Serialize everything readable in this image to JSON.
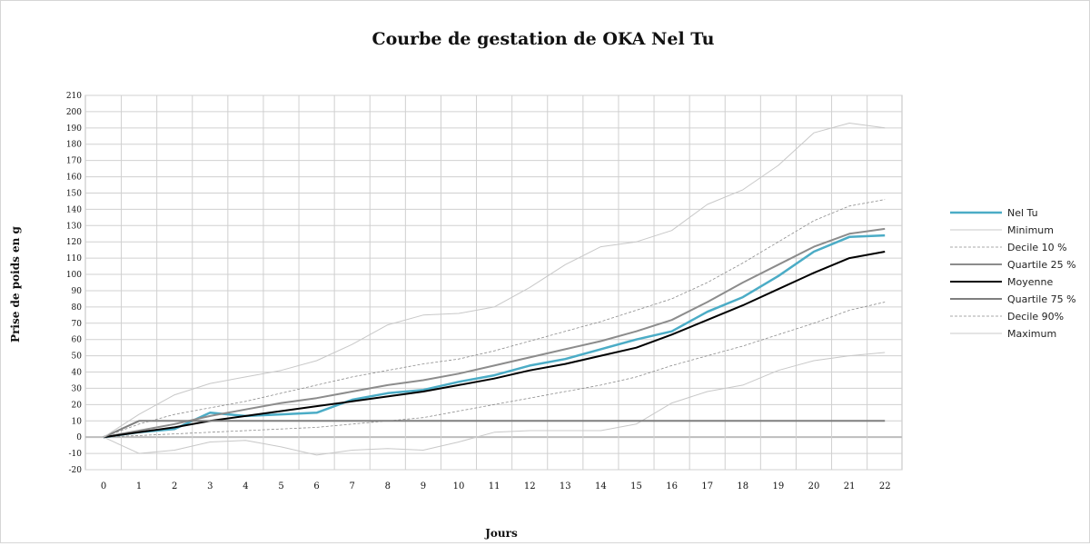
{
  "chart_data": {
    "type": "line",
    "title": "Courbe de gestation de OKA Nel Tu",
    "xlabel": "Jours",
    "ylabel": "Prise de poids en g",
    "x": [
      0,
      1,
      2,
      3,
      4,
      5,
      6,
      7,
      8,
      9,
      10,
      11,
      12,
      13,
      14,
      15,
      16,
      17,
      18,
      19,
      20,
      21,
      22
    ],
    "xlim": [
      0,
      22
    ],
    "ylim": [
      -20,
      210
    ],
    "ytick_step": 10,
    "grid": true,
    "legend_position": "right",
    "series": [
      {
        "name": "Nel Tu",
        "color": "#4bacc6",
        "width": 2.5,
        "dash": "",
        "values": [
          0,
          3,
          5,
          15,
          13,
          14,
          15,
          23,
          27,
          29,
          34,
          38,
          44,
          48,
          54,
          60,
          65,
          77,
          86,
          99,
          114,
          123,
          124
        ]
      },
      {
        "name": "Minimum",
        "color": "#c8c8c8",
        "width": 1,
        "dash": "",
        "values": [
          0,
          -10,
          -8,
          -3,
          -2,
          -6,
          -11,
          -8,
          -7,
          -8,
          -3,
          3,
          4,
          4,
          4,
          8,
          21,
          28,
          32,
          41,
          47,
          50,
          52
        ]
      },
      {
        "name": "Decile 10 %",
        "color": "#8c8c8c",
        "width": 0.8,
        "dash": "3,2",
        "values": [
          0,
          1,
          2,
          3,
          4,
          5,
          6,
          8,
          10,
          12,
          16,
          20,
          24,
          28,
          32,
          37,
          44,
          50,
          56,
          63,
          70,
          78,
          83
        ]
      },
      {
        "name": "Quartile 25 %",
        "color": "#8c8c8c",
        "width": 2,
        "dash": "",
        "values": [
          0,
          4,
          8,
          13,
          17,
          21,
          24,
          28,
          32,
          35,
          39,
          44,
          49,
          54,
          59,
          65,
          72,
          83,
          95,
          106,
          117,
          125,
          128
        ]
      },
      {
        "name": "Moyenne",
        "color": "#000000",
        "width": 2,
        "dash": "",
        "values": [
          0,
          3,
          6,
          10,
          13,
          16,
          19,
          22,
          25,
          28,
          32,
          36,
          41,
          45,
          50,
          55,
          63,
          72,
          81,
          91,
          101,
          110,
          114
        ]
      },
      {
        "name": "Quartile 75 %",
        "color": "#7f7f7f",
        "width": 2,
        "dash": "",
        "values": [
          0,
          10,
          10,
          10,
          10,
          10,
          10,
          10,
          10,
          10,
          10,
          10,
          10,
          10,
          10,
          10,
          10,
          10,
          10,
          10,
          10,
          10,
          10
        ]
      },
      {
        "name": "Decile 90%",
        "color": "#8c8c8c",
        "width": 0.8,
        "dash": "3,2",
        "values": [
          0,
          8,
          14,
          18,
          22,
          27,
          32,
          37,
          41,
          45,
          48,
          53,
          59,
          65,
          71,
          78,
          85,
          95,
          107,
          120,
          133,
          142,
          146
        ]
      },
      {
        "name": "Maximum",
        "color": "#c8c8c8",
        "width": 1,
        "dash": "",
        "values": [
          0,
          14,
          26,
          33,
          37,
          41,
          47,
          57,
          69,
          75,
          76,
          80,
          92,
          106,
          117,
          120,
          127,
          143,
          152,
          167,
          187,
          193,
          190
        ]
      }
    ]
  }
}
